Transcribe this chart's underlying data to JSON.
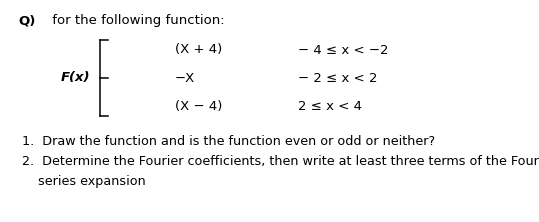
{
  "title_bold": "Q)",
  "title_text": " for the following function:",
  "fx_label": "F(x)",
  "row1_expr": "(X + 4)",
  "row1_cond": "− 4 ≤ x < −2",
  "row2_expr": "−X",
  "row2_cond": "− 2 ≤ x < 2",
  "row3_expr": "(X − 4)",
  "row3_cond": "2 ≤ x < 4",
  "item1": "Draw the function and is the function even or odd or neither?",
  "item2a": "Determine the Fourier coefficients, then write at least three terms of the Fourier",
  "item2b": "series expansion",
  "font_main": 9.5,
  "bg_color": "#ffffff"
}
